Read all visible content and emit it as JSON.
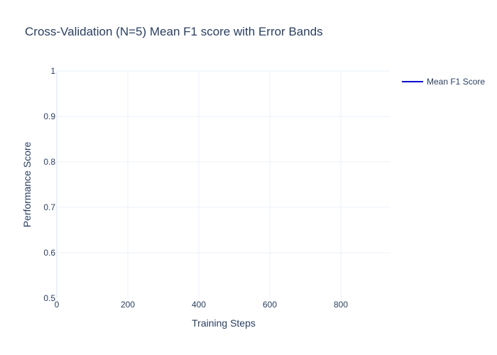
{
  "chart_data": {
    "type": "line",
    "title": "Cross-Validation (N=5) Mean F1 score with Error Bands",
    "xlabel": "Training Steps",
    "ylabel": "Performance Score",
    "xlim": [
      0,
      940
    ],
    "ylim": [
      0.5,
      1.0
    ],
    "xticks": [
      0,
      200,
      400,
      600,
      800
    ],
    "yticks": [
      0.5,
      0.6,
      0.7,
      0.8,
      0.9,
      1
    ],
    "x_tick_labels": [
      "0",
      "200",
      "400",
      "600",
      "800"
    ],
    "y_tick_labels": [
      "0.5",
      "0.6",
      "0.7",
      "0.8",
      "0.9",
      "1"
    ],
    "grid": true,
    "legend_position": "top-right",
    "series": [
      {
        "name": "Mean F1 Score",
        "color": "#0000cc",
        "x": [],
        "y": []
      }
    ]
  }
}
